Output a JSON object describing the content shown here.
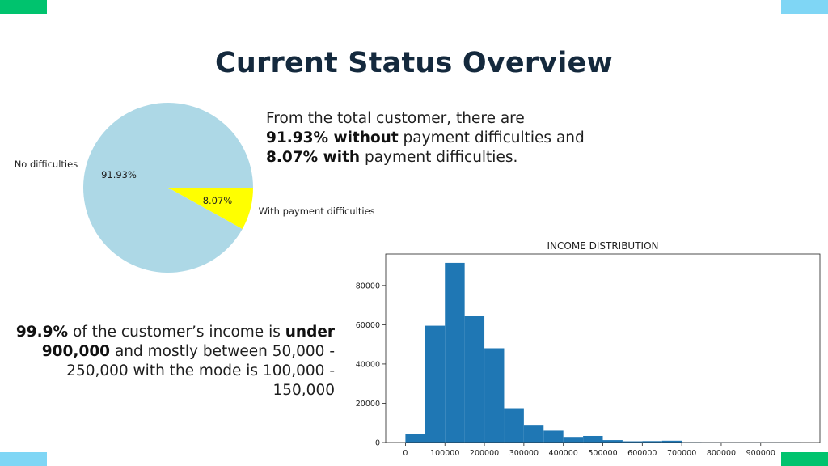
{
  "colors": {
    "corner_green": "#00c36e",
    "corner_blue": "#7fd6f5",
    "title": "#14293d",
    "pie_no": "#add8e6",
    "pie_with": "#ffff00",
    "hist_bar": "#1f77b4"
  },
  "title": "Current Status Overview",
  "summary_payment": {
    "line1": "From the total customer, there are",
    "line2_bold": "91.93% without",
    "line2_rest": " payment difficulties and",
    "line3_bold": "8.07% with",
    "line3_rest": " payment difficulties."
  },
  "summary_income": {
    "part1_bold": "99.9%",
    "part2": " of the customer’s income is ",
    "part3_bold": "under 900,000",
    "part4": " and mostly between 50,000 - 250,000 with the mode is 100,000 - 150,000"
  },
  "chart_data": [
    {
      "type": "pie",
      "title": "",
      "slices": [
        {
          "label": "No difficulties",
          "value": 91.93,
          "pct_label": "91.93%",
          "color": "#add8e6"
        },
        {
          "label": "With payment difficulties",
          "value": 8.07,
          "pct_label": "8.07%",
          "color": "#ffff00"
        }
      ]
    },
    {
      "type": "bar",
      "title": "INCOME DISTRIBUTION",
      "xlabel": "",
      "ylabel": "",
      "bin_edges": [
        0,
        50000,
        100000,
        150000,
        200000,
        250000,
        300000,
        350000,
        400000,
        450000,
        500000,
        550000,
        600000,
        650000,
        700000,
        750000,
        800000,
        850000,
        900000,
        950000,
        1000000
      ],
      "values": [
        4500,
        59500,
        91500,
        64500,
        48000,
        17500,
        9000,
        6000,
        2800,
        3300,
        1200,
        600,
        700,
        900,
        200,
        100,
        100,
        100,
        100,
        100
      ],
      "xticks": [
        0,
        100000,
        200000,
        300000,
        400000,
        500000,
        600000,
        700000,
        800000,
        900000
      ],
      "yticks": [
        0,
        20000,
        40000,
        60000,
        80000
      ],
      "xlim": [
        -50000,
        1050000
      ],
      "ylim": [
        0,
        96000
      ],
      "grid": false
    }
  ]
}
